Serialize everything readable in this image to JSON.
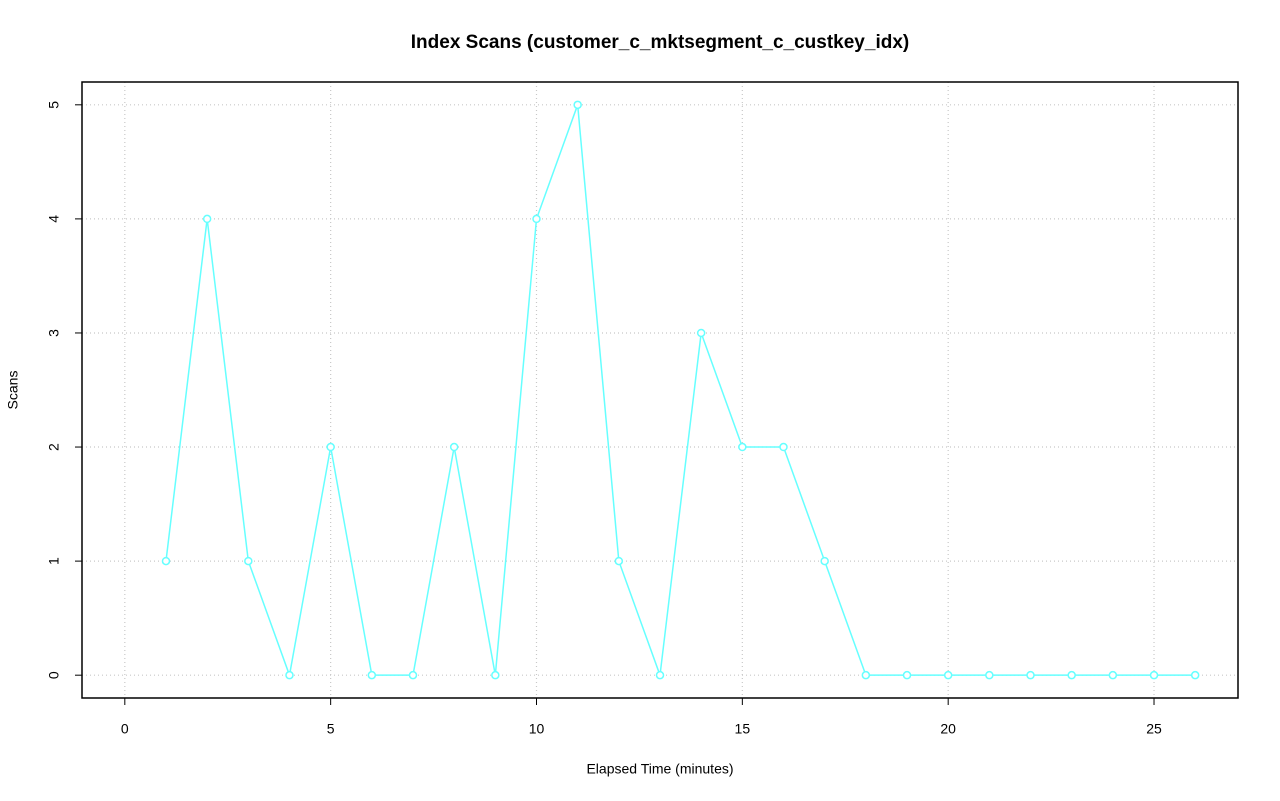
{
  "chart_data": {
    "type": "line",
    "title": "Index Scans (customer_c_mktsegment_c_custkey_idx)",
    "x_label": "Elapsed Time (minutes)",
    "y_label": "Scans",
    "x": [
      1,
      2,
      3,
      4,
      5,
      6,
      7,
      8,
      9,
      10,
      11,
      12,
      13,
      14,
      15,
      16,
      17,
      18,
      19,
      20,
      21,
      22,
      23,
      24,
      25,
      26
    ],
    "series": [
      {
        "name": "Scans",
        "color": "#66ffff",
        "values": [
          1,
          4,
          1,
          0,
          2,
          0,
          0,
          2,
          0,
          4,
          5,
          1,
          0,
          3,
          2,
          2,
          1,
          0,
          0,
          0,
          0,
          0,
          0,
          0,
          0,
          0
        ]
      }
    ],
    "xlim": [
      -1.04,
      27.04
    ],
    "xticks": [
      0,
      5,
      10,
      15,
      20,
      25
    ],
    "ylim": [
      -0.2,
      5.2
    ],
    "yticks": [
      0,
      1,
      2,
      3,
      4,
      5
    ],
    "grid": true,
    "markers": true
  }
}
